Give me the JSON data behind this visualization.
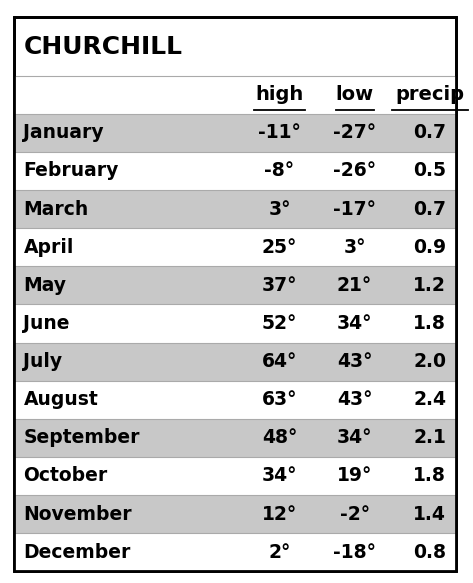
{
  "title": "CHURCHILL",
  "headers": [
    "high",
    "low",
    "precip"
  ],
  "months": [
    "January",
    "February",
    "March",
    "April",
    "May",
    "June",
    "July",
    "August",
    "September",
    "October",
    "November",
    "December"
  ],
  "highs": [
    "-11°",
    "-8°",
    "3°",
    "25°",
    "37°",
    "52°",
    "64°",
    "63°",
    "48°",
    "34°",
    "12°",
    "2°"
  ],
  "lows": [
    "-27°",
    "-26°",
    "-17°",
    "3°",
    "21°",
    "34°",
    "43°",
    "43°",
    "34°",
    "19°",
    "-2°",
    "-18°"
  ],
  "precips": [
    "0.7",
    "0.5",
    "0.7",
    "0.9",
    "1.2",
    "1.8",
    "2.0",
    "2.4",
    "2.1",
    "1.8",
    "1.4",
    "0.8"
  ],
  "row_colors": [
    "#c8c8c8",
    "#ffffff",
    "#c8c8c8",
    "#ffffff",
    "#c8c8c8",
    "#ffffff",
    "#c8c8c8",
    "#ffffff",
    "#c8c8c8",
    "#ffffff",
    "#c8c8c8",
    "#ffffff"
  ],
  "bg_color": "#ffffff",
  "border_color": "#000000",
  "text_color": "#000000",
  "title_fontsize": 18,
  "header_fontsize": 14,
  "cell_fontsize": 13.5,
  "fig_width": 4.73,
  "fig_height": 5.83
}
